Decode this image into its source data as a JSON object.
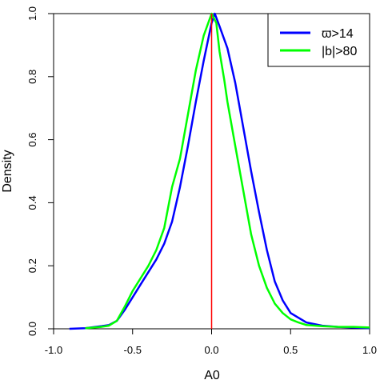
{
  "chart_data": {
    "type": "line",
    "xlabel": "A0",
    "ylabel": "Density",
    "xlim": [
      -1.0,
      1.0
    ],
    "ylim": [
      0.0,
      1.0
    ],
    "x_ticks": [
      "-1.0",
      "-0.5",
      "0.0",
      "0.5",
      "1.0"
    ],
    "y_ticks": [
      "0.0",
      "0.2",
      "0.4",
      "0.6",
      "0.8",
      "1.0"
    ],
    "grid": false,
    "legend_position": "top-right",
    "vline": {
      "x": 0.0,
      "color": "#ff0000"
    },
    "series": [
      {
        "name": "ϖ>14",
        "color": "#0000ff",
        "points": [
          [
            -0.9,
            0.0
          ],
          [
            -0.8,
            0.002
          ],
          [
            -0.7,
            0.008
          ],
          [
            -0.65,
            0.012
          ],
          [
            -0.6,
            0.025
          ],
          [
            -0.55,
            0.06
          ],
          [
            -0.5,
            0.1
          ],
          [
            -0.45,
            0.14
          ],
          [
            -0.4,
            0.18
          ],
          [
            -0.35,
            0.22
          ],
          [
            -0.3,
            0.27
          ],
          [
            -0.25,
            0.34
          ],
          [
            -0.2,
            0.45
          ],
          [
            -0.15,
            0.58
          ],
          [
            -0.1,
            0.72
          ],
          [
            -0.05,
            0.85
          ],
          [
            0.0,
            0.97
          ],
          [
            0.02,
            1.0
          ],
          [
            0.05,
            0.96
          ],
          [
            0.1,
            0.89
          ],
          [
            0.15,
            0.78
          ],
          [
            0.2,
            0.64
          ],
          [
            0.25,
            0.5
          ],
          [
            0.3,
            0.37
          ],
          [
            0.35,
            0.25
          ],
          [
            0.4,
            0.15
          ],
          [
            0.45,
            0.09
          ],
          [
            0.5,
            0.05
          ],
          [
            0.55,
            0.035
          ],
          [
            0.6,
            0.02
          ],
          [
            0.7,
            0.01
          ],
          [
            0.8,
            0.006
          ],
          [
            0.9,
            0.004
          ],
          [
            1.0,
            0.002
          ]
        ]
      },
      {
        "name": "|b|>80",
        "color": "#00ff00",
        "points": [
          [
            -0.8,
            0.002
          ],
          [
            -0.7,
            0.006
          ],
          [
            -0.65,
            0.01
          ],
          [
            -0.6,
            0.025
          ],
          [
            -0.55,
            0.07
          ],
          [
            -0.5,
            0.12
          ],
          [
            -0.45,
            0.16
          ],
          [
            -0.4,
            0.2
          ],
          [
            -0.35,
            0.25
          ],
          [
            -0.3,
            0.32
          ],
          [
            -0.25,
            0.45
          ],
          [
            -0.2,
            0.54
          ],
          [
            -0.15,
            0.68
          ],
          [
            -0.1,
            0.82
          ],
          [
            -0.05,
            0.93
          ],
          [
            0.0,
            1.0
          ],
          [
            0.03,
            0.97
          ],
          [
            0.05,
            0.88
          ],
          [
            0.08,
            0.79
          ],
          [
            0.1,
            0.72
          ],
          [
            0.15,
            0.58
          ],
          [
            0.2,
            0.44
          ],
          [
            0.25,
            0.3
          ],
          [
            0.3,
            0.2
          ],
          [
            0.35,
            0.13
          ],
          [
            0.4,
            0.08
          ],
          [
            0.45,
            0.05
          ],
          [
            0.5,
            0.03
          ],
          [
            0.55,
            0.02
          ],
          [
            0.6,
            0.012
          ],
          [
            0.7,
            0.008
          ],
          [
            0.8,
            0.006
          ],
          [
            0.9,
            0.006
          ],
          [
            1.0,
            0.004
          ]
        ]
      }
    ]
  }
}
